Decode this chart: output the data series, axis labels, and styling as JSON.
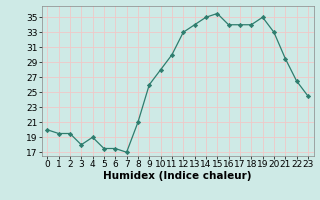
{
  "x": [
    0,
    1,
    2,
    3,
    4,
    5,
    6,
    7,
    8,
    9,
    10,
    11,
    12,
    13,
    14,
    15,
    16,
    17,
    18,
    19,
    20,
    21,
    22,
    23
  ],
  "y": [
    20,
    19.5,
    19.5,
    18,
    19,
    17.5,
    17.5,
    17,
    21,
    26,
    28,
    30,
    33,
    34,
    35,
    35.5,
    34,
    34,
    34,
    35,
    33,
    29.5,
    26.5,
    24.5
  ],
  "xlabel": "Humidex (Indice chaleur)",
  "xlim": [
    -0.5,
    23.5
  ],
  "ylim": [
    16.5,
    36.5
  ],
  "yticks": [
    17,
    19,
    21,
    23,
    25,
    27,
    29,
    31,
    33,
    35
  ],
  "xticks": [
    0,
    1,
    2,
    3,
    4,
    5,
    6,
    7,
    8,
    9,
    10,
    11,
    12,
    13,
    14,
    15,
    16,
    17,
    18,
    19,
    20,
    21,
    22,
    23
  ],
  "line_color": "#2e7d6e",
  "marker_color": "#2e7d6e",
  "bg_color": "#ceeae6",
  "grid_color": "#f0c8c8",
  "tick_fontsize": 6.5,
  "xlabel_fontsize": 7.5
}
